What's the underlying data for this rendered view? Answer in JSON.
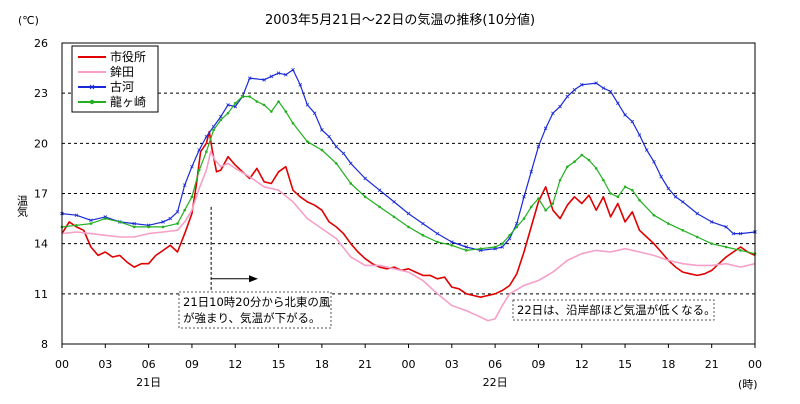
{
  "chart_data": {
    "type": "line",
    "title": "2003年5月21日～22日の気温の推移(10分値)",
    "ylabel": "温気",
    "yunit": "(℃)",
    "xunit": "(時)",
    "ylim": [
      8,
      26
    ],
    "yticks": [
      "8",
      "11",
      "14",
      "17",
      "20",
      "23",
      "26"
    ],
    "xlim": [
      0,
      48
    ],
    "xticks": [
      "00",
      "03",
      "06",
      "09",
      "12",
      "15",
      "18",
      "21",
      "00",
      "03",
      "06",
      "09",
      "12",
      "15",
      "18",
      "21",
      "00"
    ],
    "day_labels": [
      {
        "label": "21日",
        "x": 6
      },
      {
        "label": "22日",
        "x": 30
      }
    ],
    "grid": {
      "horizontal": true,
      "vertical": false
    },
    "legend_position": "top-left",
    "series": [
      {
        "name": "市役所",
        "color": "#e00000",
        "marker": "none",
        "points": [
          [
            0,
            14.6
          ],
          [
            0.5,
            15.3
          ],
          [
            1,
            15.0
          ],
          [
            1.5,
            14.8
          ],
          [
            2,
            13.8
          ],
          [
            2.5,
            13.3
          ],
          [
            3,
            13.5
          ],
          [
            3.5,
            13.2
          ],
          [
            4,
            13.3
          ],
          [
            4.5,
            12.9
          ],
          [
            5,
            12.6
          ],
          [
            5.5,
            12.8
          ],
          [
            6,
            12.8
          ],
          [
            6.5,
            13.3
          ],
          [
            7,
            13.6
          ],
          [
            7.5,
            13.9
          ],
          [
            8,
            13.5
          ],
          [
            8.5,
            14.6
          ],
          [
            9,
            15.8
          ],
          [
            9.3,
            17.5
          ],
          [
            9.6,
            19.5
          ],
          [
            10,
            20.0
          ],
          [
            10.2,
            20.7
          ],
          [
            10.4,
            19.6
          ],
          [
            10.7,
            18.3
          ],
          [
            11,
            18.4
          ],
          [
            11.5,
            19.2
          ],
          [
            12,
            18.7
          ],
          [
            12.5,
            18.3
          ],
          [
            13,
            17.9
          ],
          [
            13.5,
            18.5
          ],
          [
            14,
            17.7
          ],
          [
            14.5,
            17.6
          ],
          [
            15,
            18.3
          ],
          [
            15.5,
            18.6
          ],
          [
            16,
            17.2
          ],
          [
            16.5,
            16.8
          ],
          [
            17,
            16.5
          ],
          [
            17.5,
            16.3
          ],
          [
            18,
            16.0
          ],
          [
            18.5,
            15.3
          ],
          [
            19,
            15.0
          ],
          [
            19.5,
            14.6
          ],
          [
            20,
            14.0
          ],
          [
            20.5,
            13.5
          ],
          [
            21,
            13.1
          ],
          [
            21.5,
            12.8
          ],
          [
            22,
            12.6
          ],
          [
            22.5,
            12.5
          ],
          [
            23,
            12.6
          ],
          [
            23.5,
            12.4
          ],
          [
            24,
            12.5
          ],
          [
            24.5,
            12.3
          ],
          [
            25,
            12.1
          ],
          [
            25.5,
            12.1
          ],
          [
            26,
            11.9
          ],
          [
            26.5,
            12.0
          ],
          [
            27,
            11.4
          ],
          [
            27.5,
            11.3
          ],
          [
            28,
            11.0
          ],
          [
            28.5,
            10.9
          ],
          [
            29,
            10.8
          ],
          [
            29.5,
            10.9
          ],
          [
            30,
            11.0
          ],
          [
            30.5,
            11.2
          ],
          [
            31,
            11.5
          ],
          [
            31.5,
            12.2
          ],
          [
            32,
            13.5
          ],
          [
            32.5,
            15.0
          ],
          [
            33,
            16.5
          ],
          [
            33.5,
            17.4
          ],
          [
            34,
            16.0
          ],
          [
            34.5,
            15.5
          ],
          [
            35,
            16.3
          ],
          [
            35.5,
            16.8
          ],
          [
            36,
            16.4
          ],
          [
            36.5,
            16.9
          ],
          [
            37,
            16.0
          ],
          [
            37.5,
            16.8
          ],
          [
            38,
            15.6
          ],
          [
            38.5,
            16.4
          ],
          [
            39,
            15.3
          ],
          [
            39.5,
            15.9
          ],
          [
            40,
            14.8
          ],
          [
            40.5,
            14.4
          ],
          [
            41,
            14.0
          ],
          [
            41.5,
            13.5
          ],
          [
            42,
            13.0
          ],
          [
            42.5,
            12.6
          ],
          [
            43,
            12.3
          ],
          [
            43.5,
            12.2
          ],
          [
            44,
            12.1
          ],
          [
            44.5,
            12.2
          ],
          [
            45,
            12.4
          ],
          [
            45.5,
            12.8
          ],
          [
            46,
            13.2
          ],
          [
            46.5,
            13.5
          ],
          [
            47,
            13.8
          ],
          [
            47.5,
            13.5
          ],
          [
            48,
            13.3
          ]
        ]
      },
      {
        "name": "鉾田",
        "color": "#f5a0c8",
        "marker": "none",
        "points": [
          [
            0,
            14.6
          ],
          [
            1,
            14.7
          ],
          [
            2,
            14.6
          ],
          [
            3,
            14.5
          ],
          [
            4,
            14.4
          ],
          [
            5,
            14.4
          ],
          [
            6,
            14.6
          ],
          [
            7,
            14.7
          ],
          [
            8,
            14.8
          ],
          [
            8.5,
            15.3
          ],
          [
            9,
            16.0
          ],
          [
            9.5,
            17.3
          ],
          [
            10,
            18.4
          ],
          [
            10.3,
            19.5
          ],
          [
            10.6,
            19.0
          ],
          [
            11,
            18.6
          ],
          [
            11.5,
            18.8
          ],
          [
            12,
            18.5
          ],
          [
            13,
            18.0
          ],
          [
            14,
            17.4
          ],
          [
            15,
            17.2
          ],
          [
            16,
            16.5
          ],
          [
            17,
            15.5
          ],
          [
            18,
            14.9
          ],
          [
            19,
            14.3
          ],
          [
            20,
            13.2
          ],
          [
            21,
            12.7
          ],
          [
            22,
            12.7
          ],
          [
            23,
            12.5
          ],
          [
            24,
            12.3
          ],
          [
            25,
            11.8
          ],
          [
            26,
            11.0
          ],
          [
            27,
            10.3
          ],
          [
            28,
            10.0
          ],
          [
            29,
            9.6
          ],
          [
            29.5,
            9.4
          ],
          [
            30,
            9.5
          ],
          [
            30.5,
            10.3
          ],
          [
            31,
            11.0
          ],
          [
            32,
            11.5
          ],
          [
            33,
            11.8
          ],
          [
            34,
            12.3
          ],
          [
            35,
            13.0
          ],
          [
            36,
            13.4
          ],
          [
            37,
            13.6
          ],
          [
            38,
            13.5
          ],
          [
            39,
            13.7
          ],
          [
            40,
            13.5
          ],
          [
            41,
            13.3
          ],
          [
            42,
            13.0
          ],
          [
            43,
            12.8
          ],
          [
            44,
            12.7
          ],
          [
            45,
            12.7
          ],
          [
            46,
            12.8
          ],
          [
            47,
            12.6
          ],
          [
            48,
            12.8
          ]
        ]
      },
      {
        "name": "古河",
        "color": "#1a2ad8",
        "marker": "x",
        "points": [
          [
            0,
            15.8
          ],
          [
            1,
            15.7
          ],
          [
            2,
            15.4
          ],
          [
            3,
            15.6
          ],
          [
            4,
            15.3
          ],
          [
            5,
            15.2
          ],
          [
            6,
            15.1
          ],
          [
            7,
            15.3
          ],
          [
            7.5,
            15.5
          ],
          [
            8,
            15.9
          ],
          [
            8.5,
            17.5
          ],
          [
            9,
            18.6
          ],
          [
            9.5,
            19.6
          ],
          [
            10,
            20.4
          ],
          [
            10.5,
            21.0
          ],
          [
            11,
            21.6
          ],
          [
            11.5,
            22.3
          ],
          [
            12,
            22.2
          ],
          [
            12.5,
            22.8
          ],
          [
            13,
            23.9
          ],
          [
            14,
            23.8
          ],
          [
            14.5,
            24.0
          ],
          [
            15,
            24.2
          ],
          [
            15.5,
            24.1
          ],
          [
            16,
            24.4
          ],
          [
            16.5,
            23.5
          ],
          [
            17,
            22.3
          ],
          [
            17.5,
            21.8
          ],
          [
            18,
            20.8
          ],
          [
            18.5,
            20.4
          ],
          [
            19,
            19.8
          ],
          [
            19.5,
            19.4
          ],
          [
            20,
            18.8
          ],
          [
            21,
            17.9
          ],
          [
            22,
            17.2
          ],
          [
            23,
            16.5
          ],
          [
            24,
            15.8
          ],
          [
            25,
            15.2
          ],
          [
            26,
            14.6
          ],
          [
            27,
            14.1
          ],
          [
            28,
            13.8
          ],
          [
            29,
            13.6
          ],
          [
            30,
            13.7
          ],
          [
            30.5,
            13.8
          ],
          [
            31,
            14.3
          ],
          [
            31.5,
            15.2
          ],
          [
            32,
            16.8
          ],
          [
            32.5,
            18.3
          ],
          [
            33,
            19.8
          ],
          [
            33.5,
            20.9
          ],
          [
            34,
            21.8
          ],
          [
            34.5,
            22.2
          ],
          [
            35,
            22.8
          ],
          [
            35.5,
            23.2
          ],
          [
            36,
            23.5
          ],
          [
            37,
            23.6
          ],
          [
            37.5,
            23.3
          ],
          [
            38,
            23.1
          ],
          [
            38.5,
            22.4
          ],
          [
            39,
            21.7
          ],
          [
            39.5,
            21.3
          ],
          [
            40,
            20.5
          ],
          [
            40.5,
            19.6
          ],
          [
            41,
            18.9
          ],
          [
            41.5,
            18.0
          ],
          [
            42,
            17.3
          ],
          [
            42.5,
            16.8
          ],
          [
            43,
            16.5
          ],
          [
            44,
            15.8
          ],
          [
            45,
            15.3
          ],
          [
            46,
            15.0
          ],
          [
            46.5,
            14.6
          ],
          [
            47,
            14.6
          ],
          [
            48,
            14.7
          ]
        ]
      },
      {
        "name": "龍ヶ崎",
        "color": "#22b020",
        "marker": "dot",
        "points": [
          [
            0,
            15.0
          ],
          [
            1,
            15.1
          ],
          [
            2,
            15.2
          ],
          [
            3,
            15.5
          ],
          [
            4,
            15.3
          ],
          [
            5,
            15.0
          ],
          [
            6,
            15.0
          ],
          [
            7,
            15.0
          ],
          [
            8,
            15.2
          ],
          [
            8.5,
            16.0
          ],
          [
            9,
            16.8
          ],
          [
            9.5,
            18.4
          ],
          [
            10,
            19.5
          ],
          [
            10.5,
            20.8
          ],
          [
            11,
            21.4
          ],
          [
            11.5,
            21.8
          ],
          [
            12,
            22.4
          ],
          [
            12.5,
            22.8
          ],
          [
            13,
            22.8
          ],
          [
            13.5,
            22.5
          ],
          [
            14,
            22.3
          ],
          [
            14.5,
            21.9
          ],
          [
            15,
            22.5
          ],
          [
            15.5,
            21.9
          ],
          [
            16,
            21.2
          ],
          [
            17,
            20.1
          ],
          [
            18,
            19.6
          ],
          [
            19,
            18.8
          ],
          [
            20,
            17.6
          ],
          [
            21,
            16.8
          ],
          [
            22,
            16.2
          ],
          [
            23,
            15.6
          ],
          [
            24,
            15.0
          ],
          [
            25,
            14.5
          ],
          [
            26,
            14.1
          ],
          [
            27,
            13.9
          ],
          [
            28,
            13.6
          ],
          [
            29,
            13.7
          ],
          [
            30,
            13.8
          ],
          [
            30.5,
            14.0
          ],
          [
            31,
            14.5
          ],
          [
            31.5,
            15.0
          ],
          [
            32,
            15.5
          ],
          [
            32.5,
            16.2
          ],
          [
            33,
            16.7
          ],
          [
            33.5,
            16.0
          ],
          [
            34,
            16.4
          ],
          [
            34.5,
            17.8
          ],
          [
            35,
            18.6
          ],
          [
            35.5,
            18.9
          ],
          [
            36,
            19.3
          ],
          [
            36.5,
            19.0
          ],
          [
            37,
            18.5
          ],
          [
            37.5,
            17.8
          ],
          [
            38,
            17.0
          ],
          [
            38.5,
            16.8
          ],
          [
            39,
            17.4
          ],
          [
            39.5,
            17.2
          ],
          [
            40,
            16.6
          ],
          [
            41,
            15.7
          ],
          [
            42,
            15.2
          ],
          [
            43,
            14.8
          ],
          [
            44,
            14.4
          ],
          [
            45,
            14.0
          ],
          [
            46,
            13.8
          ],
          [
            47,
            13.6
          ],
          [
            48,
            13.4
          ]
        ]
      }
    ],
    "annotations": [
      {
        "lines": [
          "21日10時20分から北東の風",
          "が強まり、気温が下がる。"
        ]
      },
      {
        "lines": [
          "22日は、沿岸部ほど気温が低くなる。"
        ]
      }
    ]
  }
}
